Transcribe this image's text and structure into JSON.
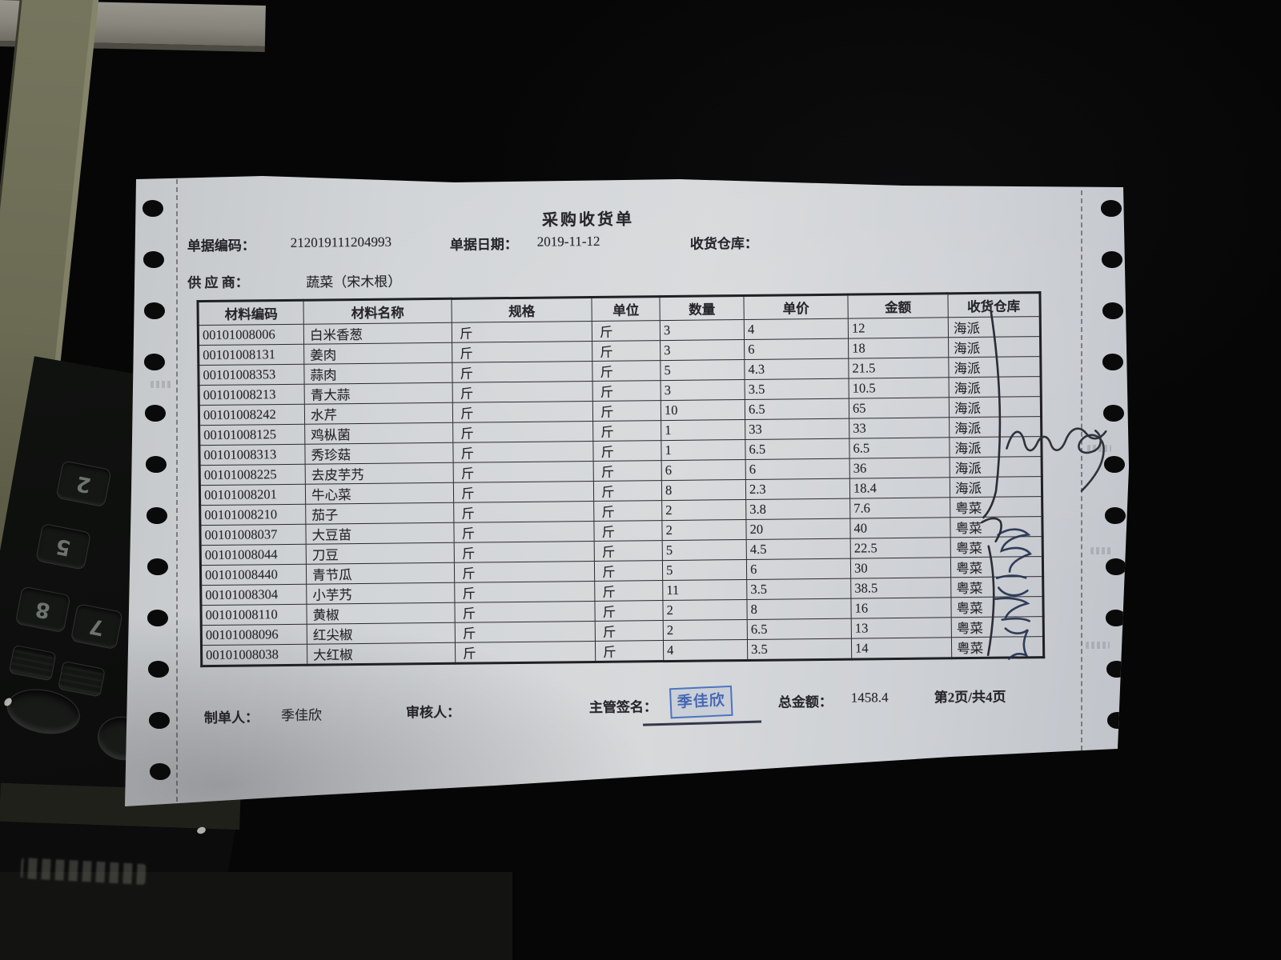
{
  "background": {
    "keypad_keys": [
      "2",
      "5",
      "8",
      "7"
    ]
  },
  "doc": {
    "title": "采购收货单",
    "fields": {
      "code_label": "单据编码：",
      "code_value": "212019111204993",
      "date_label": "单据日期：",
      "date_value": "2019-11-12",
      "warehouse_label": "收货仓库：",
      "warehouse_value": "",
      "supplier_label": "供 应 商：",
      "supplier_value": "蔬菜（宋木根）"
    },
    "table": {
      "headers": [
        "材料编码",
        "材料名称",
        "规格",
        "单位",
        "数量",
        "单价",
        "金额",
        "收货仓库"
      ],
      "rows": [
        {
          "code": "00101008006",
          "name": "白米香葱",
          "spec": "斤",
          "unit": "斤",
          "qty": "3",
          "price": "4",
          "amount": "12",
          "warehouse": "海派"
        },
        {
          "code": "00101008131",
          "name": "姜肉",
          "spec": "斤",
          "unit": "斤",
          "qty": "3",
          "price": "6",
          "amount": "18",
          "warehouse": "海派"
        },
        {
          "code": "00101008353",
          "name": "蒜肉",
          "spec": "斤",
          "unit": "斤",
          "qty": "5",
          "price": "4.3",
          "amount": "21.5",
          "warehouse": "海派"
        },
        {
          "code": "00101008213",
          "name": "青大蒜",
          "spec": "斤",
          "unit": "斤",
          "qty": "3",
          "price": "3.5",
          "amount": "10.5",
          "warehouse": "海派"
        },
        {
          "code": "00101008242",
          "name": "水芹",
          "spec": "斤",
          "unit": "斤",
          "qty": "10",
          "price": "6.5",
          "amount": "65",
          "warehouse": "海派"
        },
        {
          "code": "00101008125",
          "name": "鸡枞菌",
          "spec": "斤",
          "unit": "斤",
          "qty": "1",
          "price": "33",
          "amount": "33",
          "warehouse": "海派"
        },
        {
          "code": "00101008313",
          "name": "秀珍菇",
          "spec": "斤",
          "unit": "斤",
          "qty": "1",
          "price": "6.5",
          "amount": "6.5",
          "warehouse": "海派"
        },
        {
          "code": "00101008225",
          "name": "去皮芋艿",
          "spec": "斤",
          "unit": "斤",
          "qty": "6",
          "price": "6",
          "amount": "36",
          "warehouse": "海派"
        },
        {
          "code": "00101008201",
          "name": "牛心菜",
          "spec": "斤",
          "unit": "斤",
          "qty": "8",
          "price": "2.3",
          "amount": "18.4",
          "warehouse": "海派"
        },
        {
          "code": "00101008210",
          "name": "茄子",
          "spec": "斤",
          "unit": "斤",
          "qty": "2",
          "price": "3.8",
          "amount": "7.6",
          "warehouse": "粤菜"
        },
        {
          "code": "00101008037",
          "name": "大豆苗",
          "spec": "斤",
          "unit": "斤",
          "qty": "2",
          "price": "20",
          "amount": "40",
          "warehouse": "粤菜"
        },
        {
          "code": "00101008044",
          "name": "刀豆",
          "spec": "斤",
          "unit": "斤",
          "qty": "5",
          "price": "4.5",
          "amount": "22.5",
          "warehouse": "粤菜"
        },
        {
          "code": "00101008440",
          "name": "青节瓜",
          "spec": "斤",
          "unit": "斤",
          "qty": "5",
          "price": "6",
          "amount": "30",
          "warehouse": "粤菜"
        },
        {
          "code": "00101008304",
          "name": "小芋艿",
          "spec": "斤",
          "unit": "斤",
          "qty": "11",
          "price": "3.5",
          "amount": "38.5",
          "warehouse": "粤菜"
        },
        {
          "code": "00101008110",
          "name": "黄椒",
          "spec": "斤",
          "unit": "斤",
          "qty": "2",
          "price": "8",
          "amount": "16",
          "warehouse": "粤菜"
        },
        {
          "code": "00101008096",
          "name": "红尖椒",
          "spec": "斤",
          "unit": "斤",
          "qty": "2",
          "price": "6.5",
          "amount": "13",
          "warehouse": "粤菜"
        },
        {
          "code": "00101008038",
          "name": "大红椒",
          "spec": "斤",
          "unit": "斤",
          "qty": "4",
          "price": "3.5",
          "amount": "14",
          "warehouse": "粤菜"
        }
      ]
    },
    "footer": {
      "maker_label": "制单人：",
      "maker_value": "季佳欣",
      "checker_label": "审核人：",
      "checker_value": "",
      "sign_label": "主管签名：",
      "stamp_text": "季佳欣",
      "total_label": "总金额：",
      "total_value": "1458.4",
      "page_info": "第2页/共4页"
    },
    "annotations": {
      "handwritten_name": "冯贤章"
    }
  }
}
